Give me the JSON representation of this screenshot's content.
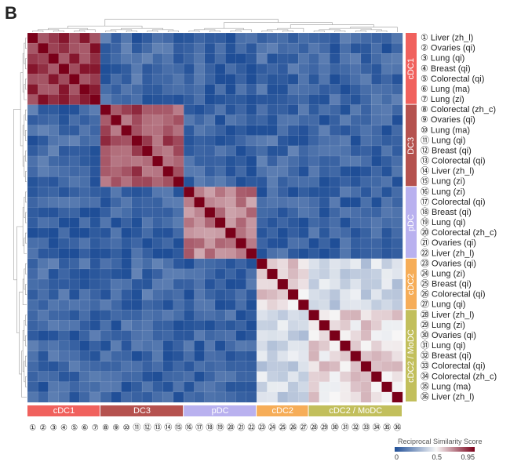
{
  "panel_letter": "B",
  "chart_data": {
    "type": "heatmap",
    "title": "",
    "rows": [
      "① Liver (zh_l)",
      "② Ovaries (qi)",
      "③ Lung (qi)",
      "④ Breast (qi)",
      "⑤ Colorectal (qi)",
      "⑥ Lung (ma)",
      "⑦ Lung (zi)",
      "⑧ Colorectal (zh_c)",
      "⑨ Ovaries (qi)",
      "⑩ Lung (ma)",
      "⑪ Lung (qi)",
      "⑫ Breast (qi)",
      "⑬ Colorectal (qi)",
      "⑭ Liver (zh_l)",
      "⑮ Lung (zi)",
      "⑯ Lung (zi)",
      "⑰ Colorectal (qi)",
      "⑱ Breast (qi)",
      "⑲ Lung (qi)",
      "⑳ Colorectal (zh_c)",
      "㉑ Ovaries (qi)",
      "㉒ Liver (zh_l)",
      "㉓ Ovaries (qi)",
      "㉔ Lung (zi)",
      "㉕ Breast (qi)",
      "㉖ Colorectal (qi)",
      "㉗ Lung (qi)",
      "㉘ Liver (zh_l)",
      "㉙ Lung (zi)",
      "㉚ Ovaries (qi)",
      "㉛ Lung (qi)",
      "㉜ Breast (qi)",
      "㉝ Colorectal (qi)",
      "㉞ Colorectal (zh_c)",
      "㉟ Lung (ma)",
      "㊱ Liver (zh_l)"
    ],
    "columns": [
      "①",
      "②",
      "③",
      "④",
      "⑤",
      "⑥",
      "⑦",
      "⑧",
      "⑨",
      "⑩",
      "⑪",
      "⑫",
      "⑬",
      "⑭",
      "⑮",
      "⑯",
      "⑰",
      "⑱",
      "⑲",
      "⑳",
      "㉑",
      "㉒",
      "㉓",
      "㉔",
      "㉕",
      "㉖",
      "㉗",
      "㉘",
      "㉙",
      "㉚",
      "㉛",
      "㉜",
      "㉝",
      "㉞",
      "㉟",
      "㊱"
    ],
    "groups": [
      {
        "name": "cDC1",
        "start": 0,
        "end": 6,
        "color": "#f0615d"
      },
      {
        "name": "DC3",
        "start": 7,
        "end": 14,
        "color": "#b5524f"
      },
      {
        "name": "pDC",
        "start": 15,
        "end": 21,
        "color": "#b9b1ef"
      },
      {
        "name": "cDC2",
        "start": 22,
        "end": 26,
        "color": "#f6ad58"
      },
      {
        "name": "cDC2 / MoDC",
        "start": 27,
        "end": 35,
        "color": "#c2bf5c"
      }
    ],
    "block_similarity": [
      [
        0.86,
        0.08,
        0.05,
        0.08,
        0.07
      ],
      [
        0.08,
        0.8,
        0.06,
        0.08,
        0.07
      ],
      [
        0.05,
        0.06,
        0.72,
        0.05,
        0.06
      ],
      [
        0.08,
        0.08,
        0.05,
        0.55,
        0.4
      ],
      [
        0.07,
        0.07,
        0.06,
        0.4,
        0.55
      ]
    ],
    "diagonal_value": 0.95,
    "colorscale": {
      "title": "Reciprocal Similarity Score",
      "min": 0,
      "mid": 0.5,
      "max": 0.95,
      "ticks": [
        "0",
        "0.5",
        "0.95"
      ],
      "colors": [
        "#1f4e97",
        "#f7f7f7",
        "#7a0019"
      ]
    },
    "dendrogram": {
      "row": true,
      "column": true
    }
  }
}
